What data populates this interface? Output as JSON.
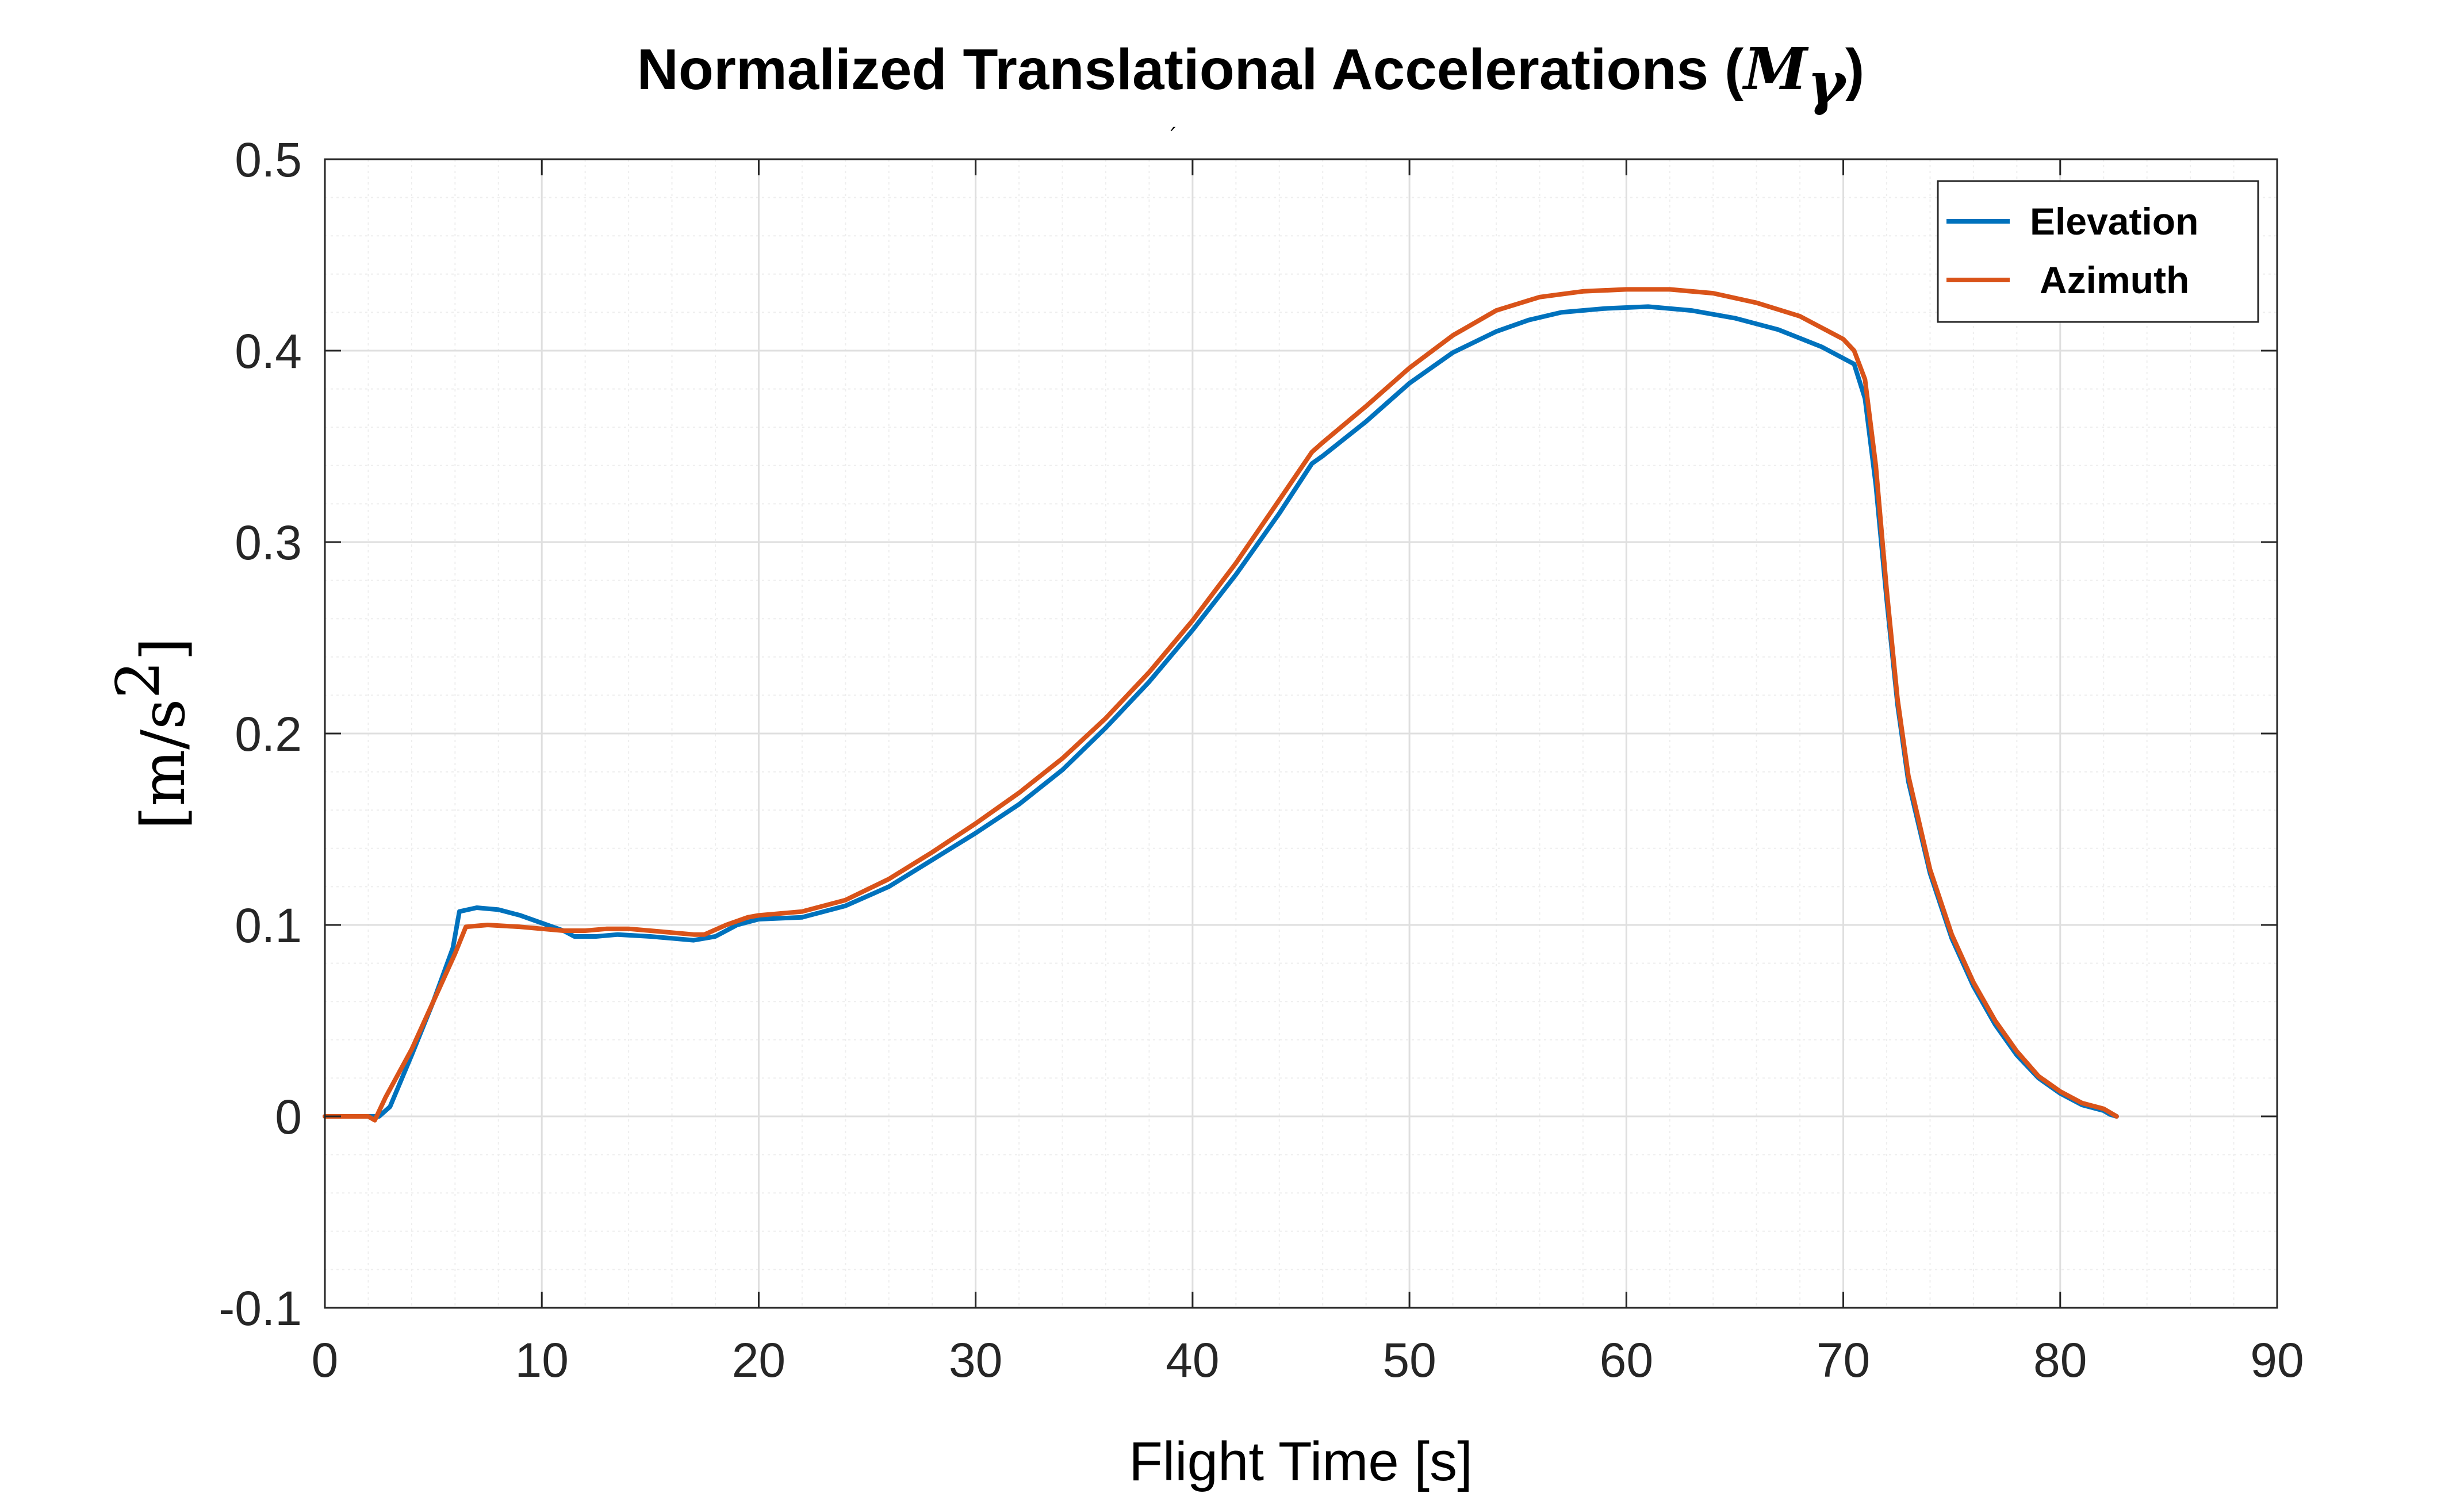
{
  "colors": {
    "elevation": "#0072BD",
    "azimuth": "#D95319",
    "axis": "#262626",
    "grid_major": "#DFDFDF",
    "grid_minor": "#EEEEEE",
    "background": "#FFFFFF"
  },
  "chart_data": {
    "type": "line",
    "title": "Normalized Translational Accelerations (",
    "title_math": "M",
    "title_math_sub": "γ",
    "title_close": ")",
    "stray_mark": "′",
    "xlabel": "Flight Time [s]",
    "ylabel": "[m/s",
    "ylabel_sup": "2",
    "ylabel_close": "]",
    "xlim": [
      0,
      90
    ],
    "ylim": [
      -0.1,
      0.5
    ],
    "xticks": [
      0,
      10,
      20,
      30,
      40,
      50,
      60,
      70,
      80,
      90
    ],
    "yticks": [
      -0.1,
      0,
      0.1,
      0.2,
      0.3,
      0.4,
      0.5
    ],
    "xtick_labels": [
      "0",
      "10",
      "20",
      "30",
      "40",
      "50",
      "60",
      "70",
      "80",
      "90"
    ],
    "ytick_labels": [
      "-0.1",
      "0",
      "0.1",
      "0.2",
      "0.3",
      "0.4",
      "0.5"
    ],
    "x_minor_step": 2,
    "y_minor_step": 0.02,
    "grid": true,
    "legend_position": "top-right",
    "series": [
      {
        "name": "Elevation",
        "color_key": "elevation",
        "x": [
          0,
          2.0,
          2.5,
          3.0,
          4.0,
          5.0,
          5.9,
          6.2,
          7.0,
          8.0,
          9.0,
          10.0,
          11.0,
          11.5,
          12.5,
          13.5,
          15.0,
          16.0,
          17.0,
          18.0,
          19.0,
          20.0,
          22.0,
          24.0,
          26.0,
          28.0,
          30.0,
          32.0,
          34.0,
          36.0,
          38.0,
          40.0,
          42.0,
          44.0,
          45.5,
          46.0,
          48.0,
          50.0,
          52.0,
          54.0,
          55.5,
          57.0,
          59.0,
          61.0,
          63.0,
          65.0,
          67.0,
          69.0,
          70.5,
          71.0,
          71.5,
          72.0,
          72.5,
          73.0,
          74.0,
          75.0,
          76.0,
          77.0,
          78.0,
          79.0,
          80.0,
          81.0,
          82.0,
          82.3,
          82.6
        ],
        "y": [
          0,
          0,
          0,
          0.005,
          0.032,
          0.06,
          0.088,
          0.107,
          0.109,
          0.108,
          0.105,
          0.101,
          0.097,
          0.094,
          0.094,
          0.095,
          0.094,
          0.093,
          0.092,
          0.094,
          0.1,
          0.103,
          0.104,
          0.11,
          0.12,
          0.134,
          0.148,
          0.163,
          0.181,
          0.203,
          0.227,
          0.254,
          0.283,
          0.315,
          0.341,
          0.345,
          0.363,
          0.383,
          0.399,
          0.41,
          0.416,
          0.42,
          0.422,
          0.423,
          0.421,
          0.417,
          0.411,
          0.402,
          0.393,
          0.375,
          0.33,
          0.27,
          0.215,
          0.175,
          0.127,
          0.093,
          0.068,
          0.048,
          0.032,
          0.02,
          0.012,
          0.006,
          0.003,
          0.001,
          0
        ]
      },
      {
        "name": "Azimuth",
        "color_key": "azimuth",
        "x": [
          0,
          2.0,
          2.3,
          2.8,
          4.0,
          5.0,
          6.0,
          6.5,
          7.5,
          9.0,
          10.0,
          11.0,
          12.0,
          13.0,
          14.0,
          15.0,
          16.0,
          17.0,
          17.5,
          18.5,
          19.5,
          20.0,
          22.0,
          24.0,
          26.0,
          28.0,
          30.0,
          32.0,
          34.0,
          36.0,
          38.0,
          40.0,
          42.0,
          44.0,
          45.5,
          46.0,
          48.0,
          50.0,
          52.0,
          54.0,
          56.0,
          58.0,
          60.0,
          62.0,
          64.0,
          66.0,
          68.0,
          70.0,
          70.5,
          71.0,
          71.5,
          72.0,
          72.5,
          73.0,
          74.0,
          75.0,
          76.0,
          77.0,
          78.0,
          79.0,
          80.0,
          81.0,
          82.0,
          82.3,
          82.6
        ],
        "y": [
          0,
          0,
          -0.002,
          0.01,
          0.035,
          0.06,
          0.085,
          0.099,
          0.1,
          0.099,
          0.098,
          0.097,
          0.097,
          0.098,
          0.098,
          0.097,
          0.096,
          0.095,
          0.095,
          0.1,
          0.104,
          0.105,
          0.107,
          0.113,
          0.124,
          0.138,
          0.153,
          0.169,
          0.187,
          0.208,
          0.232,
          0.259,
          0.289,
          0.322,
          0.347,
          0.352,
          0.371,
          0.391,
          0.408,
          0.421,
          0.428,
          0.431,
          0.432,
          0.432,
          0.43,
          0.425,
          0.418,
          0.406,
          0.4,
          0.385,
          0.34,
          0.275,
          0.218,
          0.178,
          0.129,
          0.095,
          0.07,
          0.05,
          0.034,
          0.021,
          0.013,
          0.007,
          0.004,
          0.002,
          0
        ]
      }
    ]
  }
}
